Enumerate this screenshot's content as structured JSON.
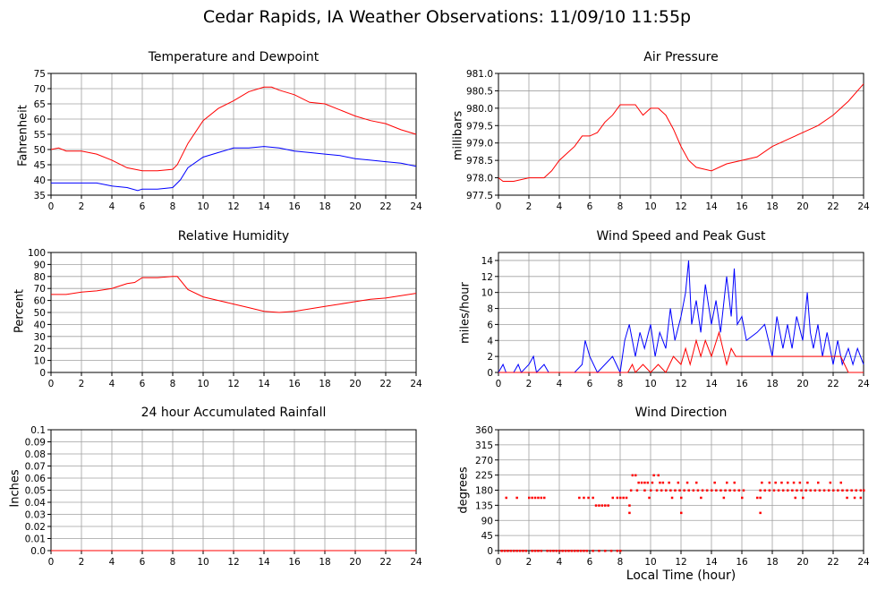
{
  "title": "Cedar Rapids, IA Weather Observations: 11/09/10 11:55p",
  "xaxis_label": "Local Time (hour)",
  "colors": {
    "red": "#ff0000",
    "blue": "#0000ff",
    "grid": "#a0a0a0"
  },
  "chart_data": [
    {
      "id": "temp",
      "type": "line",
      "title": "Temperature and Dewpoint",
      "ylabel": "Fahrenheit",
      "xlim": [
        0,
        24
      ],
      "ylim": [
        35,
        75
      ],
      "xticks": [
        0,
        2,
        4,
        6,
        8,
        10,
        12,
        14,
        16,
        18,
        20,
        22,
        24
      ],
      "yticks": [
        35,
        40,
        45,
        50,
        55,
        60,
        65,
        70,
        75
      ],
      "ytick_labels": [
        "35",
        "40",
        "45",
        "50",
        "55",
        "60",
        "65",
        "70",
        "75"
      ],
      "series": [
        {
          "color": "#ff0000",
          "x": [
            0,
            0.5,
            1,
            2,
            3,
            4,
            5,
            6,
            7,
            8,
            8.3,
            9,
            10,
            11,
            12,
            13,
            14,
            14.5,
            15,
            16,
            17,
            18,
            19,
            20,
            21,
            22,
            23,
            24
          ],
          "y": [
            50,
            50.5,
            49.5,
            49.5,
            48.5,
            46.5,
            44,
            43,
            43,
            43.5,
            45,
            52,
            59.5,
            63.5,
            66,
            69,
            70.5,
            70.5,
            69.5,
            68,
            65.5,
            65,
            63,
            61,
            59.5,
            58.5,
            56.5,
            55
          ]
        },
        {
          "color": "#0000ff",
          "x": [
            0,
            1,
            2,
            3,
            4,
            5,
            5.7,
            6,
            7,
            8,
            8.5,
            9,
            10,
            11,
            12,
            13,
            14,
            15,
            16,
            17,
            18,
            19,
            20,
            21,
            22,
            23,
            24
          ],
          "y": [
            39,
            39,
            39,
            39,
            38,
            37.5,
            36.5,
            37,
            37,
            37.5,
            40,
            44,
            47.5,
            49,
            50.5,
            50.5,
            51,
            50.5,
            49.5,
            49,
            48.5,
            48,
            47,
            46.5,
            46,
            45.5,
            44.5
          ]
        }
      ]
    },
    {
      "id": "pres",
      "type": "line",
      "title": "Air Pressure",
      "ylabel": "millibars",
      "xlim": [
        0,
        24
      ],
      "ylim": [
        977.5,
        981.0
      ],
      "xticks": [
        0,
        2,
        4,
        6,
        8,
        10,
        12,
        14,
        16,
        18,
        20,
        22,
        24
      ],
      "yticks": [
        977.5,
        978.0,
        978.5,
        979.0,
        979.5,
        980.0,
        980.5,
        981.0
      ],
      "ytick_labels": [
        "977.5",
        "978.0",
        "978.5",
        "979.0",
        "979.5",
        "980.0",
        "980.5",
        "981.0"
      ],
      "series": [
        {
          "color": "#ff0000",
          "x": [
            0,
            0.3,
            1,
            2,
            3,
            3.5,
            4,
            5,
            5.5,
            6,
            6.5,
            7,
            7.5,
            8,
            9,
            9.5,
            10,
            10.5,
            11,
            11.5,
            12,
            12.5,
            13,
            14,
            15,
            16,
            17,
            18,
            19,
            20,
            21,
            22,
            23,
            24
          ],
          "y": [
            978.0,
            977.9,
            977.9,
            978.0,
            978.0,
            978.2,
            978.5,
            978.9,
            979.2,
            979.2,
            979.3,
            979.6,
            979.8,
            980.1,
            980.1,
            979.8,
            980.0,
            980.0,
            979.8,
            979.4,
            978.9,
            978.5,
            978.3,
            978.2,
            978.4,
            978.5,
            978.6,
            978.9,
            979.1,
            979.3,
            979.5,
            979.8,
            980.2,
            980.7
          ]
        }
      ]
    },
    {
      "id": "rh",
      "type": "line",
      "title": "Relative Humidity",
      "ylabel": "Percent",
      "xlim": [
        0,
        24
      ],
      "ylim": [
        0,
        100
      ],
      "xticks": [
        0,
        2,
        4,
        6,
        8,
        10,
        12,
        14,
        16,
        18,
        20,
        22,
        24
      ],
      "yticks": [
        0,
        10,
        20,
        30,
        40,
        50,
        60,
        70,
        80,
        90,
        100
      ],
      "ytick_labels": [
        "0",
        "10",
        "20",
        "30",
        "40",
        "50",
        "60",
        "70",
        "80",
        "90",
        "100"
      ],
      "series": [
        {
          "color": "#ff0000",
          "x": [
            0,
            1,
            2,
            3,
            4,
            5,
            5.5,
            6,
            7,
            8,
            8.3,
            9,
            10,
            11,
            12,
            13,
            14,
            15,
            16,
            17,
            18,
            19,
            20,
            21,
            22,
            23,
            24
          ],
          "y": [
            65,
            65,
            67,
            68,
            70,
            74,
            75,
            79,
            79,
            80,
            80,
            69,
            63,
            60,
            57,
            54,
            51,
            50,
            51,
            53,
            55,
            57,
            59,
            61,
            62,
            64,
            66
          ]
        }
      ]
    },
    {
      "id": "wind",
      "type": "line",
      "title": "Wind Speed and Peak Gust",
      "ylabel": "miles/hour",
      "xlim": [
        0,
        24
      ],
      "ylim": [
        0,
        15
      ],
      "xticks": [
        0,
        2,
        4,
        6,
        8,
        10,
        12,
        14,
        16,
        18,
        20,
        22,
        24
      ],
      "yticks": [
        0,
        2,
        4,
        6,
        8,
        10,
        12,
        14
      ],
      "ytick_labels": [
        "0",
        "2",
        "4",
        "6",
        "8",
        "10",
        "12",
        "14"
      ],
      "series": [
        {
          "color": "#0000ff",
          "x": [
            0,
            0.3,
            0.5,
            1,
            1.3,
            1.5,
            2,
            2.3,
            2.5,
            3,
            3.3,
            3.5,
            5,
            5.5,
            5.7,
            6,
            6.5,
            7,
            7.5,
            8,
            8.3,
            8.6,
            9,
            9.3,
            9.6,
            10,
            10.3,
            10.6,
            11,
            11.3,
            11.6,
            12,
            12.3,
            12.5,
            12.7,
            13,
            13.3,
            13.6,
            14,
            14.3,
            14.6,
            15,
            15.3,
            15.5,
            15.7,
            16,
            16.3,
            17,
            17.5,
            18,
            18.3,
            18.7,
            19,
            19.3,
            19.6,
            20,
            20.3,
            20.5,
            20.7,
            21,
            21.3,
            21.6,
            22,
            22.3,
            22.6,
            23,
            23.3,
            23.6,
            24
          ],
          "y": [
            0,
            1,
            0,
            0,
            1,
            0,
            1,
            2,
            0,
            1,
            0,
            0,
            0,
            1,
            4,
            2,
            0,
            1,
            2,
            0,
            4,
            6,
            2,
            5,
            3,
            6,
            2,
            5,
            3,
            8,
            4,
            7,
            10,
            14,
            6,
            9,
            5,
            11,
            6,
            9,
            5,
            12,
            7,
            13,
            6,
            7,
            4,
            5,
            6,
            2,
            7,
            3,
            6,
            3,
            7,
            4,
            10,
            5,
            3,
            6,
            2,
            5,
            1,
            4,
            1,
            3,
            1,
            3,
            1
          ]
        },
        {
          "color": "#ff0000",
          "x": [
            0,
            8.5,
            8.8,
            9,
            9.5,
            10,
            10.5,
            11,
            11.5,
            12,
            12.3,
            12.6,
            13,
            13.3,
            13.6,
            14,
            14.5,
            15,
            15.3,
            15.6,
            16,
            16.5,
            17,
            17.5,
            18,
            18.5,
            19,
            19.5,
            20,
            20.5,
            21,
            21.5,
            22,
            22.5,
            23,
            24
          ],
          "y": [
            0,
            0,
            1,
            0,
            1,
            0,
            1,
            0,
            2,
            1,
            3,
            1,
            4,
            2,
            4,
            2,
            5,
            1,
            3,
            2,
            2,
            2,
            2,
            2,
            2,
            2,
            2,
            2,
            2,
            2,
            2,
            2,
            2,
            2,
            0,
            0
          ]
        }
      ]
    },
    {
      "id": "rain",
      "type": "line",
      "title": "24 hour Accumulated Rainfall",
      "ylabel": "Inches",
      "xlim": [
        0,
        24
      ],
      "ylim": [
        0,
        0.1
      ],
      "xticks": [
        0,
        2,
        4,
        6,
        8,
        10,
        12,
        14,
        16,
        18,
        20,
        22,
        24
      ],
      "yticks": [
        0,
        0.01,
        0.02,
        0.03,
        0.04,
        0.05,
        0.06,
        0.07,
        0.08,
        0.09,
        0.1
      ],
      "ytick_labels": [
        "0.0",
        "0.01",
        "0.02",
        "0.03",
        "0.04",
        "0.05",
        "0.06",
        "0.07",
        "0.08",
        "0.09",
        "0.1"
      ],
      "series": [
        {
          "color": "#ff0000",
          "x": [
            0,
            24
          ],
          "y": [
            0,
            0
          ]
        }
      ]
    },
    {
      "id": "dir",
      "type": "scatter",
      "title": "Wind Direction",
      "ylabel": "degrees",
      "xlim": [
        0,
        24
      ],
      "ylim": [
        0,
        360
      ],
      "xticks": [
        0,
        2,
        4,
        6,
        8,
        10,
        12,
        14,
        16,
        18,
        20,
        22,
        24
      ],
      "yticks": [
        0,
        45,
        90,
        135,
        180,
        225,
        270,
        315,
        360
      ],
      "ytick_labels": [
        "0",
        "45",
        "90",
        "135",
        "180",
        "225",
        "270",
        "315",
        "360"
      ],
      "series": [
        {
          "color": "#ff0000",
          "x": [
            0.2,
            0.4,
            0.6,
            0.8,
            1.0,
            1.2,
            1.4,
            1.6,
            1.8,
            2.2,
            2.4,
            2.6,
            2.8,
            3.2,
            3.4,
            3.6,
            3.8,
            4.0,
            4.2,
            4.4,
            4.6,
            4.8,
            5.0,
            5.2,
            5.4,
            5.6,
            5.8,
            6.2,
            6.6,
            7.0,
            7.4,
            7.8,
            8.0,
            0.5,
            1.2,
            2.0,
            2.2,
            2.4,
            2.6,
            2.8,
            3.0,
            5.3,
            5.6,
            5.9,
            6.2,
            6.4,
            6.6,
            6.8,
            7.0,
            7.2,
            7.5,
            7.8,
            8.0,
            8.2,
            8.4,
            8.6,
            8.8,
            9.0,
            9.2,
            9.4,
            9.6,
            9.8,
            10.2,
            10.5,
            10.8,
            8.7,
            9.1,
            9.6,
            10.0,
            10.4,
            10.7,
            11.0,
            11.3,
            11.6,
            11.9,
            12.2,
            12.5,
            12.8,
            13.1,
            13.4,
            13.7,
            14.0,
            14.3,
            14.6,
            14.9,
            15.2,
            15.5,
            15.8,
            16.1,
            17.0,
            17.2,
            17.5,
            17.8,
            18.1,
            18.4,
            18.7,
            19.0,
            19.3,
            19.6,
            19.9,
            20.2,
            20.5,
            20.8,
            21.1,
            21.4,
            21.7,
            22.0,
            22.3,
            22.6,
            22.9,
            23.2,
            23.5,
            23.8,
            24.0,
            10.1,
            10.6,
            11.2,
            11.8,
            12.4,
            13.0,
            14.2,
            15.0,
            15.5,
            17.3,
            17.8,
            18.2,
            18.6,
            19.0,
            19.4,
            19.8,
            20.3,
            21.0,
            21.8,
            22.5,
            9.9,
            11.4,
            12.0,
            13.3,
            14.8,
            16.0,
            17.2,
            19.5,
            20.0,
            22.9,
            23.4,
            23.8,
            8.6,
            12.0,
            17.2
          ],
          "y": [
            0,
            0,
            0,
            0,
            0,
            0,
            0,
            0,
            0,
            0,
            0,
            0,
            0,
            0,
            0,
            0,
            0,
            0,
            0,
            0,
            0,
            0,
            0,
            0,
            0,
            0,
            0,
            0,
            0,
            0,
            0,
            0,
            0,
            158,
            158,
            158,
            158,
            158,
            158,
            158,
            158,
            158,
            158,
            158,
            158,
            135,
            135,
            135,
            135,
            135,
            158,
            158,
            158,
            158,
            158,
            135,
            225,
            225,
            203,
            203,
            203,
            203,
            225,
            225,
            203,
            180,
            180,
            180,
            180,
            180,
            180,
            180,
            180,
            180,
            180,
            180,
            180,
            180,
            180,
            180,
            180,
            180,
            180,
            180,
            180,
            180,
            180,
            180,
            180,
            158,
            180,
            180,
            180,
            180,
            180,
            180,
            180,
            180,
            180,
            180,
            180,
            180,
            180,
            180,
            180,
            180,
            180,
            180,
            180,
            180,
            180,
            180,
            180,
            180,
            203,
            203,
            203,
            203,
            203,
            203,
            203,
            203,
            203,
            203,
            203,
            203,
            203,
            203,
            203,
            203,
            203,
            203,
            203,
            203,
            158,
            158,
            158,
            158,
            158,
            158,
            158,
            158,
            158,
            158,
            158,
            158,
            113,
            113,
            113
          ]
        }
      ]
    }
  ]
}
